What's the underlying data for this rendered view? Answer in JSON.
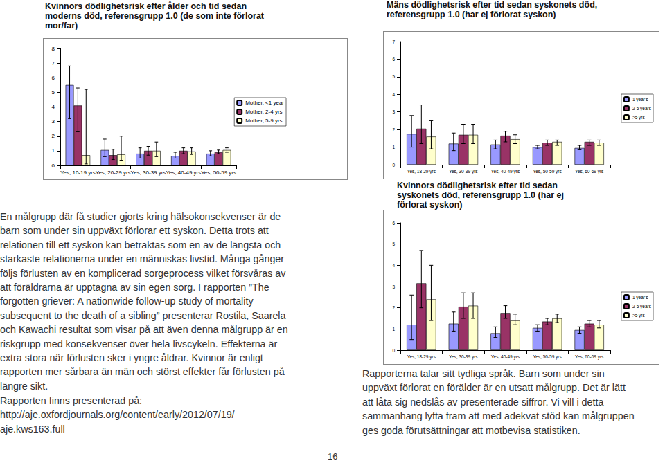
{
  "chart_data": [
    {
      "type": "bar",
      "title": "Kvinnors dödlighetsrisk efter ålder och tid sedan moderns död, referensgrupp 1.0 (de som inte förlorat mor/far)",
      "categories": [
        "Yes, 10-19 yrs",
        "Yes, 20-29 yrs",
        "Yes, 30-39 yrs",
        "Yes, 40-49 yrs",
        "Yes, 50-59 yrs"
      ],
      "series": [
        {
          "name": "Mother, <1 year",
          "color": "#9999ff",
          "values": [
            5.5,
            1.05,
            0.8,
            0.65,
            0.8
          ],
          "error_low": [
            3.2,
            0.6,
            0.5,
            0.5,
            0.65
          ],
          "error_high": [
            6.8,
            1.8,
            1.2,
            0.9,
            1.0
          ]
        },
        {
          "name": "Mother, 2-4 yrs",
          "color": "#993366",
          "values": [
            4.1,
            0.7,
            1.0,
            1.0,
            0.9
          ],
          "error_low": [
            2.3,
            0.4,
            0.7,
            0.8,
            0.8
          ],
          "error_high": [
            5.3,
            1.1,
            1.3,
            1.2,
            1.05
          ]
        },
        {
          "name": "Mother, 5-9 yrs",
          "color": "#ffffcc",
          "values": [
            0.7,
            0.75,
            1.0,
            0.95,
            1.05
          ],
          "error_low": [
            0.1,
            0.35,
            0.6,
            0.75,
            0.9
          ],
          "error_high": [
            5.2,
            2.0,
            1.6,
            1.2,
            1.2
          ]
        }
      ],
      "ylim": [
        0,
        8
      ],
      "yticks": [
        0,
        1,
        2,
        3,
        4,
        5,
        6,
        7,
        8
      ],
      "grid": false,
      "legend": "right"
    },
    {
      "type": "bar",
      "title": "Mäns dödlighetsrisk efter tid sedan syskonets död, referensgrupp 1.0 (har ej förlorat syskon)",
      "categories": [
        "Yes, 18-29 yrs",
        "Yes, 30-39 yrs",
        "Yes, 40-49 yrs",
        "Yes, 50-59 yrs",
        "Yes, 60-69 yrs"
      ],
      "series": [
        {
          "name": "1 year's",
          "color": "#9999ff",
          "values": [
            1.75,
            1.2,
            1.15,
            1.0,
            0.95
          ],
          "error_low": [
            1.0,
            0.8,
            0.9,
            0.9,
            0.85
          ],
          "error_high": [
            2.8,
            1.8,
            1.4,
            1.1,
            1.1
          ]
        },
        {
          "name": "2-5 years",
          "color": "#993366",
          "values": [
            2.05,
            1.7,
            1.65,
            1.25,
            1.3
          ],
          "error_low": [
            1.2,
            1.2,
            1.3,
            1.1,
            1.1
          ],
          "error_high": [
            3.4,
            2.3,
            1.9,
            1.4,
            1.4
          ]
        },
        {
          "name": ">5 yrs",
          "color": "#ffffcc",
          "values": [
            1.6,
            1.7,
            1.45,
            1.3,
            1.25
          ],
          "error_low": [
            0.9,
            1.2,
            1.2,
            1.1,
            1.1
          ],
          "error_high": [
            2.5,
            2.3,
            1.7,
            1.4,
            1.4
          ]
        }
      ],
      "ylim": [
        0,
        7
      ],
      "yticks": [
        0,
        1,
        2,
        3,
        4,
        5,
        6,
        7
      ],
      "grid": false,
      "legend": "right"
    },
    {
      "type": "bar",
      "title": "Kvinnors dödlighetsrisk efter tid sedan syskonets död, referensgrupp 1.0 (har ej förlorat syskon)",
      "categories": [
        "Yes, 18-29 yrs",
        "Yes, 30-39 yrs",
        "Yes, 40-49 yrs",
        "Yes, 50-59 yrs",
        "Yes, 60-69 yrs"
      ],
      "series": [
        {
          "name": "1 year's",
          "color": "#9999ff",
          "values": [
            1.2,
            1.25,
            0.8,
            1.05,
            0.95
          ],
          "error_low": [
            0.5,
            0.9,
            0.6,
            0.9,
            0.8
          ],
          "error_high": [
            2.6,
            1.8,
            1.1,
            1.2,
            1.1
          ]
        },
        {
          "name": "2-5 years",
          "color": "#993366",
          "values": [
            3.15,
            2.05,
            1.75,
            1.35,
            1.25
          ],
          "error_low": [
            2.0,
            1.5,
            1.5,
            1.2,
            1.1
          ],
          "error_high": [
            4.7,
            2.7,
            2.1,
            1.5,
            1.4
          ]
        },
        {
          "name": ">5 yrs",
          "color": "#ffffcc",
          "values": [
            2.4,
            2.1,
            1.4,
            1.5,
            1.2
          ],
          "error_low": [
            1.4,
            1.5,
            1.2,
            1.3,
            1.05
          ],
          "error_high": [
            4.0,
            2.7,
            1.7,
            1.7,
            1.4
          ]
        }
      ],
      "ylim": [
        0,
        6
      ],
      "yticks": [
        0,
        1,
        2,
        3,
        4,
        5,
        6
      ],
      "grid": false,
      "legend": "right"
    }
  ],
  "document": {
    "paragraph_left": [
      "En målgrupp där få studier gjorts kring hälsokonsekvenser är de",
      "barn som under sin uppväxt förlorar ett syskon. Detta trots att",
      "relationen till ett syskon kan betraktas som en av de längsta och",
      "starkaste relationerna under en människas livstid. Många gånger",
      "följs förlusten av en komplicerad sorgeprocess vilket försvåras av",
      "att föräldrarna är upptagna av sin egen sorg. I rapporten ”The",
      "forgotten griever: A nationwide follow-up study of mortality",
      "subsequent to the death of a sibling” presenterar Rostila, Saarela",
      "och Kawachi resultat som visar på att även denna målgrupp är en",
      "riskgrupp med konsekvenser över hela livscykeln. Effekterna är",
      "extra stora när förlusten sker i yngre åldrar. Kvinnor är enligt",
      "rapporten mer sårbara än män och störst effekter får förlusten på",
      "längre sikt."
    ],
    "source": [
      "Rapporten finns presenterad på:",
      "http://aje.oxfordjournals.org/content/early/2012/07/19/",
      "aje.kws163.full"
    ],
    "paragraph_right": [
      "Rapporterna talar sitt tydliga språk. Barn som under sin",
      "uppväxt förlorat en förälder är en utsatt målgrupp. Det är lätt",
      "att låta sig nedslås av presenterade siffror. Vi vill i detta",
      "sammanhang lyfta fram att med adekvat stöd kan målgruppen",
      "ges goda förutsättningar att motbevisa statistiken."
    ],
    "page_number": "16"
  }
}
